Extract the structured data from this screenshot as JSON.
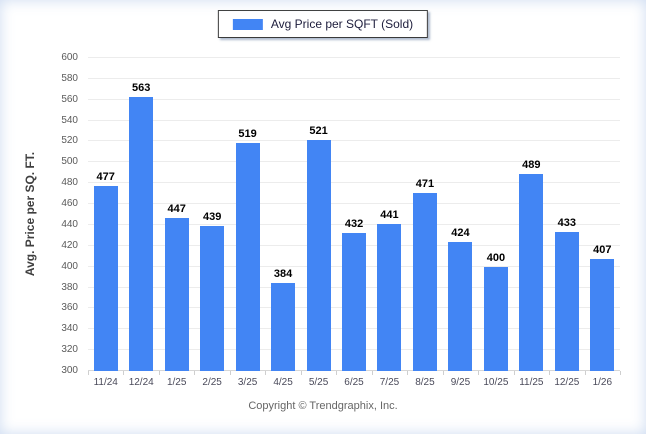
{
  "legend": {
    "label": "Avg Price per SQFT (Sold)",
    "swatch_color": "#4285F4"
  },
  "footer": {
    "copyright": "Copyright © Trendgraphix, Inc."
  },
  "chart_data": {
    "type": "bar",
    "title": "",
    "xlabel": "",
    "ylabel": "Avg. Price per SQ. FT.",
    "categories": [
      "11/24",
      "12/24",
      "1/25",
      "2/25",
      "3/25",
      "4/25",
      "5/25",
      "6/25",
      "7/25",
      "8/25",
      "9/25",
      "10/25",
      "11/25",
      "12/25",
      "1/26"
    ],
    "series": [
      {
        "name": "Avg Price per SQFT (Sold)",
        "values": [
          477,
          563,
          447,
          439,
          519,
          384,
          521,
          432,
          441,
          471,
          424,
          400,
          489,
          433,
          407
        ]
      }
    ],
    "ylim": [
      300,
      600
    ],
    "ytick_step": 20,
    "bar_color": "#4285F4",
    "grid": true,
    "legend_position": "top-center"
  }
}
